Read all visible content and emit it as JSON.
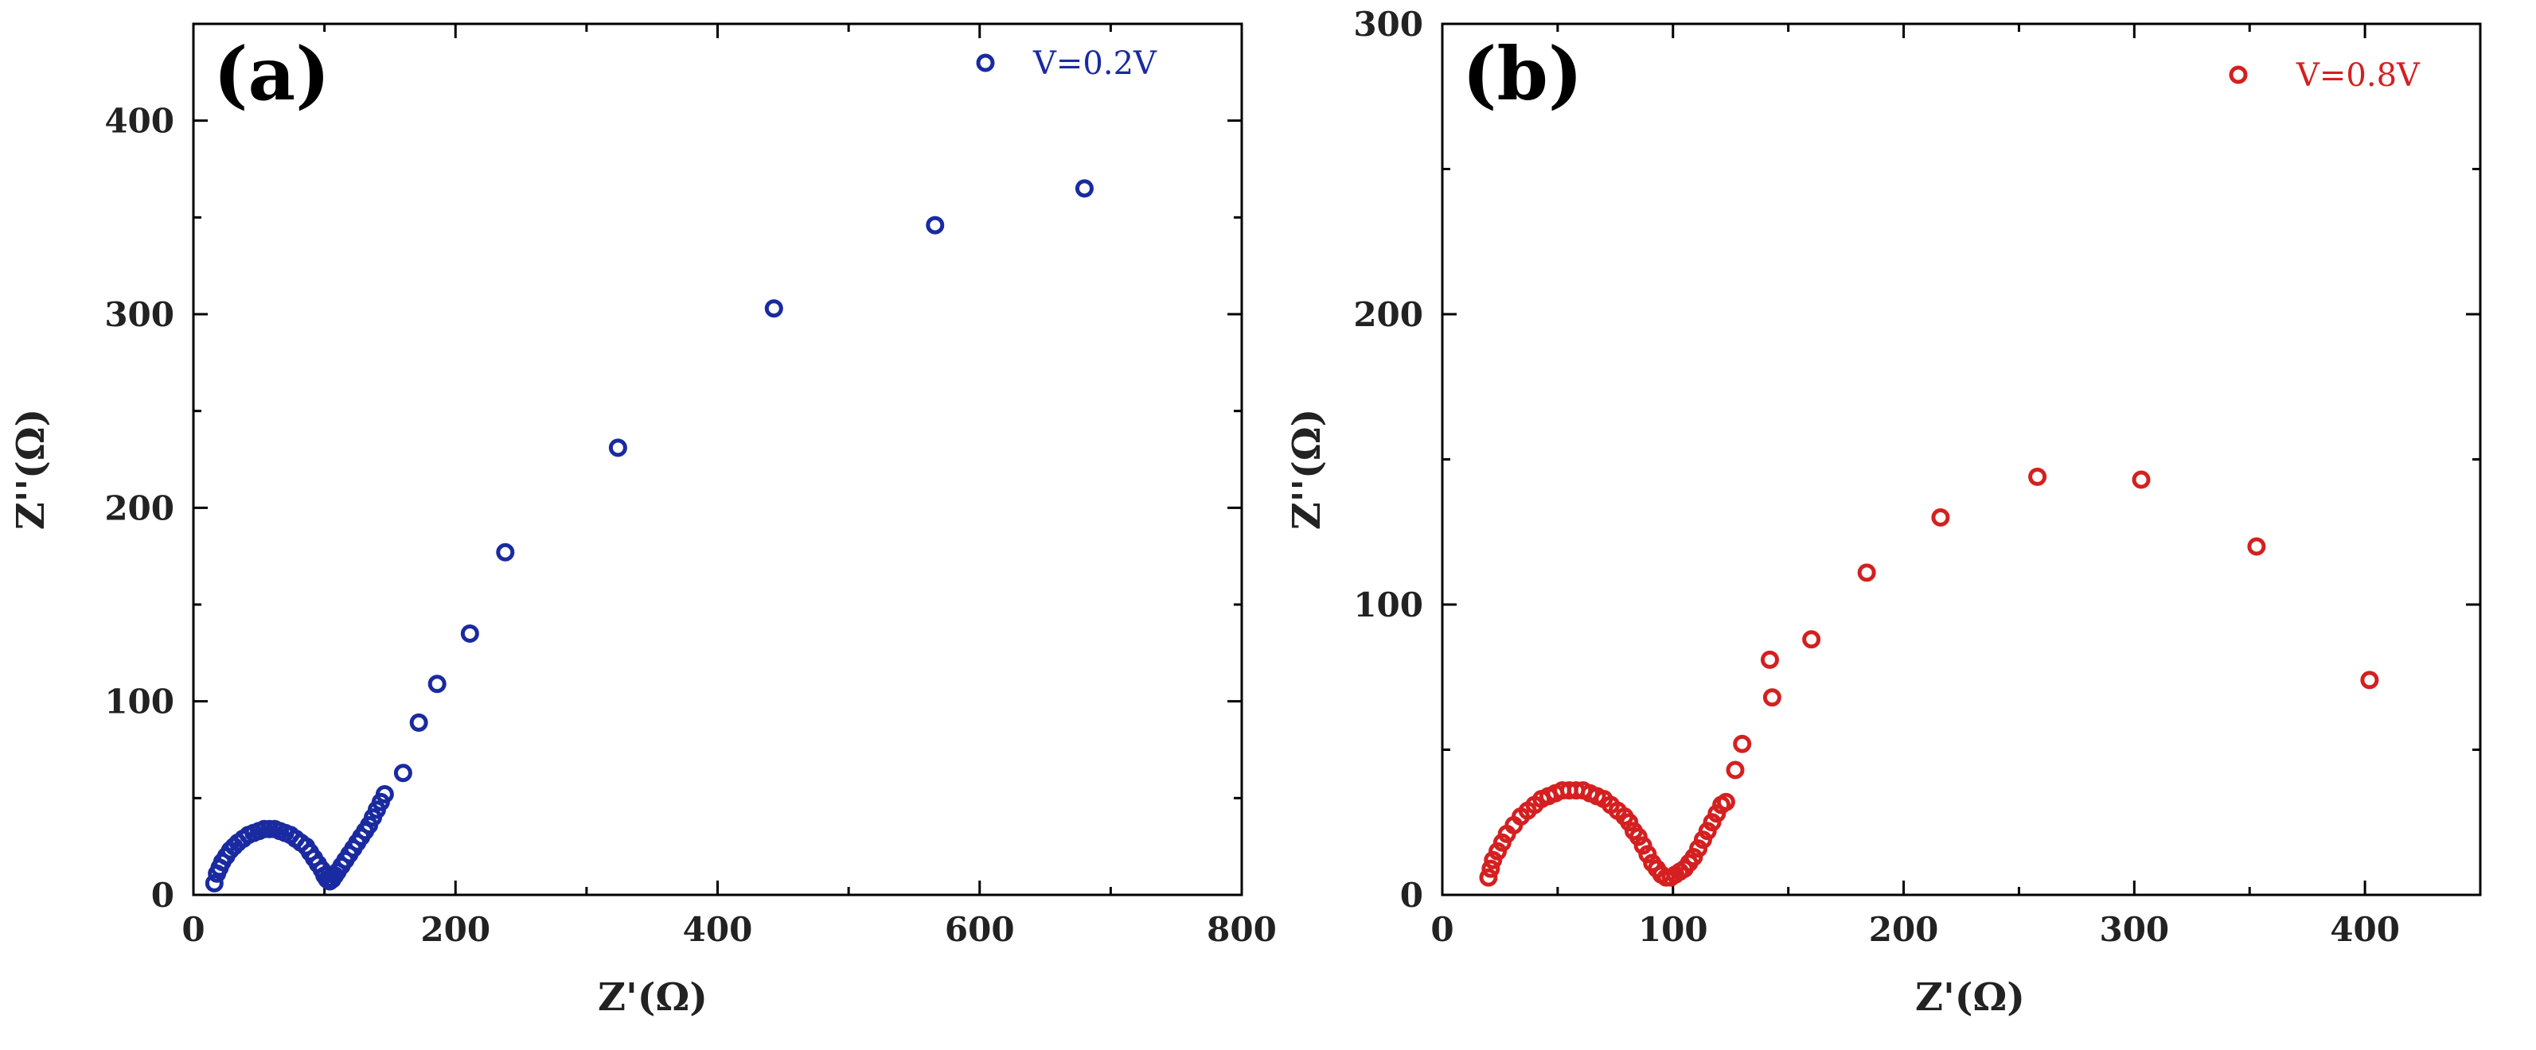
{
  "chart_data": [
    {
      "type": "scatter",
      "panel": "(a)",
      "xlabel": "Z'(Ω)",
      "ylabel": "Z''(Ω)",
      "xlim": [
        0,
        800
      ],
      "ylim": [
        0,
        450
      ],
      "xticks": [
        0,
        200,
        400,
        600,
        800
      ],
      "yticks": [
        0,
        100,
        200,
        300,
        400
      ],
      "legend": "top-right",
      "grid": false,
      "series": [
        {
          "name": "V=0.2V",
          "color": "#1a2aa0",
          "marker": "open-circle",
          "points": [
            [
              16,
              6
            ],
            [
              18,
              11
            ],
            [
              20,
              14
            ],
            [
              22,
              17
            ],
            [
              25,
              20
            ],
            [
              28,
              23
            ],
            [
              31,
              25
            ],
            [
              34,
              27
            ],
            [
              38,
              29
            ],
            [
              42,
              31
            ],
            [
              46,
              32
            ],
            [
              50,
              33
            ],
            [
              54,
              34
            ],
            [
              58,
              34
            ],
            [
              62,
              34
            ],
            [
              66,
              33
            ],
            [
              70,
              32
            ],
            [
              74,
              31
            ],
            [
              78,
              29
            ],
            [
              82,
              27
            ],
            [
              86,
              25
            ],
            [
              89,
              22
            ],
            [
              92,
              19
            ],
            [
              95,
              16
            ],
            [
              98,
              13
            ],
            [
              100,
              10
            ],
            [
              102,
              8
            ],
            [
              104,
              7
            ],
            [
              106,
              8
            ],
            [
              108,
              10
            ],
            [
              110,
              12
            ],
            [
              113,
              15
            ],
            [
              116,
              18
            ],
            [
              119,
              21
            ],
            [
              122,
              24
            ],
            [
              125,
              27
            ],
            [
              128,
              30
            ],
            [
              131,
              33
            ],
            [
              134,
              36
            ],
            [
              137,
              40
            ],
            [
              140,
              44
            ],
            [
              143,
              48
            ],
            [
              146,
              52
            ],
            [
              160,
              63
            ],
            [
              172,
              89
            ],
            [
              186,
              109
            ],
            [
              211,
              135
            ],
            [
              238,
              177
            ],
            [
              324,
              231
            ],
            [
              443,
              303
            ],
            [
              566,
              346
            ],
            [
              680,
              365
            ]
          ]
        }
      ]
    },
    {
      "type": "scatter",
      "panel": "(b)",
      "xlabel": "Z'(Ω)",
      "ylabel": "Z''(Ω)",
      "xlim": [
        0,
        450
      ],
      "ylim": [
        0,
        300
      ],
      "xticks": [
        0,
        100,
        200,
        300,
        400
      ],
      "yticks": [
        0,
        100,
        200,
        300
      ],
      "legend": "top-right",
      "grid": false,
      "series": [
        {
          "name": "V=0.8V",
          "color": "#d42020",
          "marker": "open-circle",
          "points": [
            [
              20,
              6
            ],
            [
              21,
              9
            ],
            [
              22,
              12
            ],
            [
              24,
              15
            ],
            [
              26,
              18
            ],
            [
              28,
              21
            ],
            [
              31,
              24
            ],
            [
              34,
              27
            ],
            [
              37,
              29
            ],
            [
              40,
              31
            ],
            [
              43,
              33
            ],
            [
              46,
              34
            ],
            [
              49,
              35
            ],
            [
              52,
              36
            ],
            [
              55,
              36
            ],
            [
              58,
              36
            ],
            [
              61,
              36
            ],
            [
              64,
              35
            ],
            [
              67,
              34
            ],
            [
              70,
              33
            ],
            [
              73,
              31
            ],
            [
              76,
              29
            ],
            [
              79,
              27
            ],
            [
              81,
              25
            ],
            [
              83,
              22
            ],
            [
              85,
              20
            ],
            [
              87,
              17
            ],
            [
              89,
              14
            ],
            [
              91,
              11
            ],
            [
              93,
              9
            ],
            [
              95,
              7
            ],
            [
              97,
              6
            ],
            [
              99,
              6
            ],
            [
              101,
              7
            ],
            [
              103,
              8
            ],
            [
              105,
              9
            ],
            [
              107,
              11
            ],
            [
              109,
              13
            ],
            [
              111,
              16
            ],
            [
              113,
              19
            ],
            [
              115,
              22
            ],
            [
              117,
              25
            ],
            [
              119,
              28
            ],
            [
              121,
              31
            ],
            [
              123,
              32
            ],
            [
              127,
              43
            ],
            [
              130,
              52
            ],
            [
              143,
              68
            ],
            [
              142,
              81
            ],
            [
              160,
              88
            ],
            [
              184,
              111
            ],
            [
              216,
              130
            ],
            [
              258,
              144
            ],
            [
              303,
              143
            ],
            [
              353,
              120
            ],
            [
              402,
              74
            ]
          ]
        }
      ]
    }
  ]
}
